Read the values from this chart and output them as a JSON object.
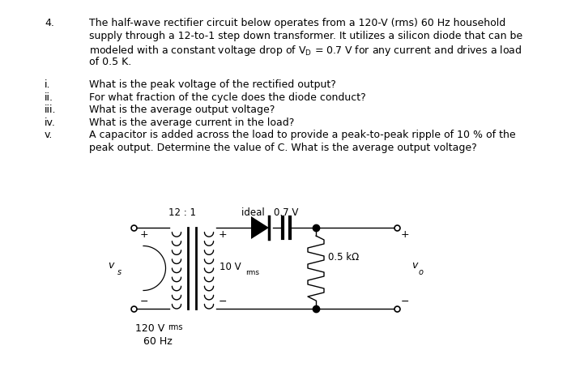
{
  "bg_color": "#ffffff",
  "text_color": "#000000",
  "fig_width": 7.0,
  "fig_height": 4.69,
  "dpi": 100,
  "problem_number": "4.",
  "problem_text_lines": [
    "The half-wave rectifier circuit below operates from a 120-V (rms) 60 Hz household",
    "supply through a 12-to-1 step down transformer. It utilizes a silicon diode that can be",
    "modeled with a constant voltage drop of V",
    "of 0.5 K."
  ],
  "subquestions": [
    [
      "i.",
      "What is the peak voltage of the rectified output?"
    ],
    [
      "ii.",
      "For what fraction of the cycle does the diode conduct?"
    ],
    [
      "iii.",
      "What is the average output voltage?"
    ],
    [
      "iv.",
      "What is the average current in the load?"
    ],
    [
      "v.",
      "A capacitor is added across the load to provide a peak-to-peak ripple of 10 % of the"
    ],
    [
      "",
      "peak output. Determine the value of C. What is the average output voltage?"
    ]
  ],
  "fs_main": 9.0,
  "fs_small": 7.0,
  "fs_circuit": 8.5,
  "fs_circuit_sub": 6.5
}
